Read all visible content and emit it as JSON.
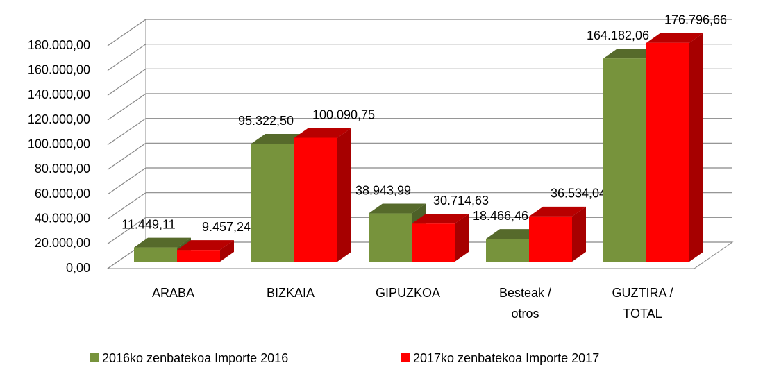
{
  "chart_data": {
    "type": "bar3d",
    "categories": [
      "ARABA",
      "BIZKAIA",
      "GIPUZKOA",
      "Besteak / otros",
      "GUZTIRA  / TOTAL"
    ],
    "series": [
      {
        "name": "2016ko zenbatekoa Importe 2016",
        "color": "#77933c",
        "values": [
          11449.11,
          95322.5,
          38943.99,
          18466.46,
          164182.06
        ],
        "value_labels": [
          "11.449,11",
          "95.322,50",
          "38.943,99",
          "18.466,46",
          "164.182,06"
        ]
      },
      {
        "name": "2017ko zenbatekoa Importe 2017",
        "color": "#ff0000",
        "values": [
          9457.24,
          100090.75,
          30714.63,
          36534.04,
          176796.66
        ],
        "value_labels": [
          "9.457,24",
          "100.090,75",
          "30.714,63",
          "36.534,04",
          "176.796,66"
        ]
      }
    ],
    "ylim": [
      0,
      180000
    ],
    "yticks": [
      {
        "value": 0,
        "label": "0,00"
      },
      {
        "value": 20000,
        "label": "20.000,00"
      },
      {
        "value": 40000,
        "label": "40.000,00"
      },
      {
        "value": 60000,
        "label": "60.000,00"
      },
      {
        "value": 80000,
        "label": "80.000,00"
      },
      {
        "value": 100000,
        "label": "100.000,00"
      },
      {
        "value": 120000,
        "label": "120.000,00"
      },
      {
        "value": 140000,
        "label": "140.000,00"
      },
      {
        "value": 160000,
        "label": "160.000,00"
      },
      {
        "value": 180000,
        "label": "180.000,00"
      }
    ],
    "grid": true,
    "legend": "bottom"
  }
}
